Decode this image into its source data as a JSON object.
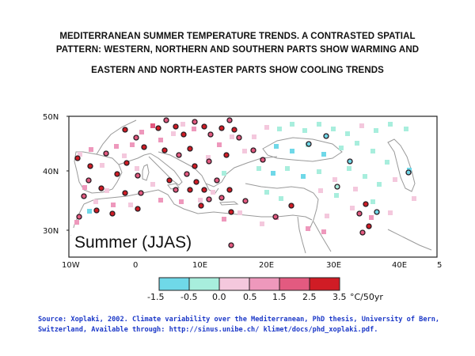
{
  "title": {
    "line1": "MEDITERRANEAN SUMMER TEMPERATURE TRENDS. A CONTRASTED SPATIAL",
    "line2": "PATTERN: WESTERN, NORTHERN AND SOUTHERN PARTS SHOW WARMING AND",
    "line3": "EASTERN AND NORTH-EASTER PARTS SHOW COOLING TRENDS"
  },
  "map": {
    "panel_label": "Summer (JJAS)",
    "lat_labels": [
      "50N",
      "40N",
      "30N"
    ],
    "lon_labels": [
      "10W",
      "0",
      "10E",
      "20E",
      "30E",
      "40E",
      "5"
    ]
  },
  "legend": {
    "tick_labels": [
      "-1.5",
      "-0.5",
      "0.0",
      "0.5",
      "1.5",
      "2.5",
      "3.5"
    ],
    "unit": "°C/50yr",
    "colors": [
      "#6fd8e8",
      "#a8eedd",
      "#f4c8dd",
      "#ee98bc",
      "#e35a80",
      "#d01c25"
    ]
  },
  "source": {
    "line1": "Source: Xoplaki, 2002. Climate variability over the Mediterranean, PhD thesis, University of Bern,",
    "line2": "Switzerland, Available through: http://sinus.unibe.ch/ klimet/docs/phd_xoplaki.pdf."
  }
}
